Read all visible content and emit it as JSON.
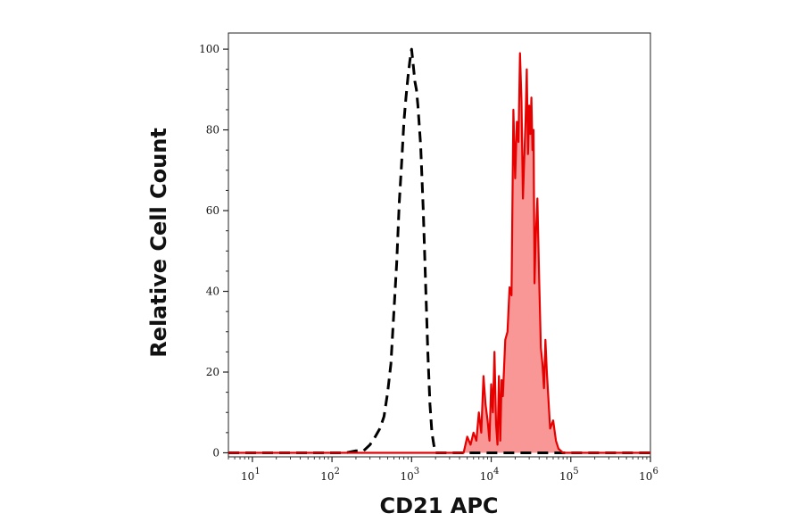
{
  "chart_data": {
    "type": "area",
    "xlabel": "CD21 APC",
    "ylabel": "Relative Cell Count",
    "x_scale": "log",
    "xlim": [
      5,
      1000000
    ],
    "ylim": [
      -1,
      104
    ],
    "x_ticks": [
      {
        "base": "10",
        "exp": "1",
        "value": 10
      },
      {
        "base": "10",
        "exp": "2",
        "value": 100
      },
      {
        "base": "10",
        "exp": "3",
        "value": 1000
      },
      {
        "base": "10",
        "exp": "4",
        "value": 10000
      },
      {
        "base": "10",
        "exp": "5",
        "value": 100000
      },
      {
        "base": "10",
        "exp": "6",
        "value": 1000000
      }
    ],
    "y_ticks": [
      "0",
      "20",
      "40",
      "60",
      "80",
      "100"
    ],
    "grid": false,
    "legend": "none",
    "series": [
      {
        "style": "dashed",
        "color": "#000000",
        "fill": "none",
        "x": [
          5,
          150,
          200,
          250,
          300,
          350,
          400,
          450,
          500,
          550,
          600,
          650,
          700,
          750,
          800,
          850,
          900,
          950,
          1000,
          1050,
          1100,
          1150,
          1200,
          1300,
          1400,
          1500,
          1600,
          1700,
          1800,
          1900,
          2000,
          2200,
          1000000
        ],
        "y": [
          0,
          0,
          0.5,
          0.5,
          2,
          4,
          6,
          9,
          15,
          22,
          35,
          47,
          62,
          72,
          82,
          88,
          93,
          97,
          100,
          96,
          92,
          90,
          86,
          76,
          60,
          42,
          25,
          12,
          5,
          2,
          0,
          0,
          0
        ]
      },
      {
        "style": "solid",
        "color": "#e60000",
        "fill": "#f99696",
        "x": [
          5,
          4500,
          5000,
          5500,
          6000,
          6500,
          7000,
          7500,
          8000,
          8500,
          9000,
          9500,
          10000,
          10500,
          11000,
          11500,
          12000,
          12500,
          13000,
          13500,
          14000,
          15000,
          16000,
          17000,
          18000,
          19000,
          20000,
          21000,
          22000,
          23000,
          24000,
          25000,
          26000,
          27000,
          28000,
          29000,
          30000,
          31000,
          32000,
          33000,
          34000,
          35000,
          36000,
          38000,
          40000,
          42000,
          44000,
          46000,
          48000,
          50000,
          55000,
          60000,
          65000,
          70000,
          80000,
          1000000
        ],
        "y": [
          0,
          0,
          4,
          2,
          5,
          3,
          10,
          5,
          19,
          12,
          8,
          3,
          17,
          10,
          25,
          7,
          2,
          19,
          3,
          18,
          14,
          28,
          30,
          41,
          39,
          85,
          68,
          82,
          77,
          99,
          87,
          63,
          73,
          82,
          95,
          74,
          86,
          79,
          88,
          75,
          80,
          42,
          52,
          63,
          43,
          26,
          22,
          16,
          28,
          20,
          6,
          8,
          3,
          1,
          0,
          0
        ]
      }
    ]
  }
}
